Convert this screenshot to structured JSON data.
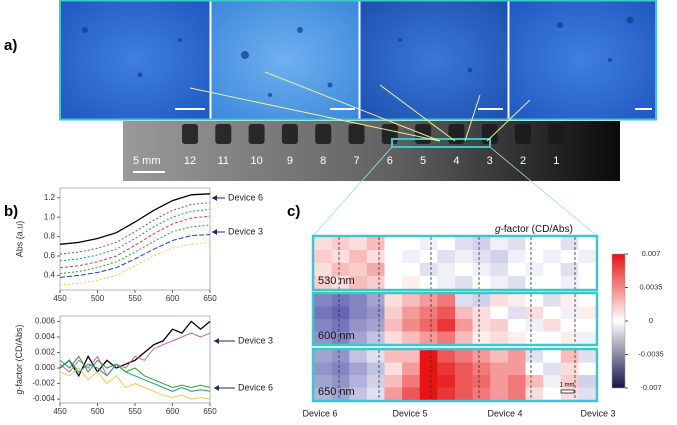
{
  "panel_labels": [
    "a)",
    "b)",
    "c)"
  ],
  "panel_a": {
    "scale_bar": "5 mm",
    "devices": [
      "12",
      "11",
      "10",
      "9",
      "8",
      "7",
      "6",
      "5",
      "4",
      "3",
      "2",
      "1"
    ]
  },
  "panel_b": {
    "abs_plot": {
      "type": "line",
      "ylabel": "Abs (a.u)",
      "x": [
        450,
        475,
        500,
        525,
        550,
        575,
        600,
        625,
        650
      ],
      "xlim": [
        450,
        650
      ],
      "xticks": [
        450,
        500,
        550,
        600,
        650
      ],
      "ylim": [
        0.25,
        1.3
      ],
      "yticks": [
        0.4,
        0.6,
        0.8,
        {
          "value": 1,
          "label": "1.0"
        },
        1.2
      ],
      "annotations": [
        "Device 6",
        "Device 3"
      ],
      "series": [
        {
          "color": "#000000",
          "dash": "",
          "values": [
            0.72,
            0.74,
            0.78,
            0.84,
            0.95,
            1.07,
            1.17,
            1.23,
            1.24
          ]
        },
        {
          "color": "#7a4fb0",
          "dash": "2,2",
          "values": [
            0.62,
            0.64,
            0.68,
            0.74,
            0.85,
            0.97,
            1.07,
            1.13,
            1.15
          ]
        },
        {
          "color": "#1a9a9a",
          "dash": "2,2",
          "values": [
            0.55,
            0.57,
            0.61,
            0.67,
            0.78,
            0.9,
            1.0,
            1.06,
            1.08
          ]
        },
        {
          "color": "#d04040",
          "dash": "3,2",
          "values": [
            0.48,
            0.5,
            0.54,
            0.6,
            0.71,
            0.83,
            0.93,
            0.99,
            1.01
          ]
        },
        {
          "color": "#3a9a3a",
          "dash": "2,2",
          "values": [
            0.42,
            0.44,
            0.48,
            0.54,
            0.64,
            0.75,
            0.85,
            0.9,
            0.92
          ]
        },
        {
          "color": "#2040c0",
          "dash": "5,2",
          "values": [
            0.38,
            0.4,
            0.43,
            0.48,
            0.57,
            0.67,
            0.76,
            0.81,
            0.82
          ]
        },
        {
          "color": "#e0d060",
          "dash": "2,2",
          "values": [
            0.3,
            0.32,
            0.35,
            0.4,
            0.5,
            0.6,
            0.68,
            0.72,
            0.74
          ]
        }
      ]
    },
    "g_plot": {
      "type": "line",
      "ylabel": [
        "g",
        "-factor (CD/Abs)"
      ],
      "x": [
        450,
        462.5,
        475,
        487.5,
        500,
        512.5,
        525,
        537.5,
        550,
        562.5,
        575,
        587.5,
        600,
        612.5,
        625,
        637.5,
        650
      ],
      "xlim": [
        450,
        650
      ],
      "xticks": [
        450,
        500,
        550,
        600,
        650
      ],
      "ylim": [
        -0.0045,
        0.0067
      ],
      "yticks": [
        -0.004,
        -0.002,
        {
          "value": 0,
          "label": "0.000"
        },
        0.002,
        0.004,
        0.006
      ],
      "annotations": [
        "Device 3",
        "Device 6"
      ],
      "series": [
        {
          "color": "#000000",
          "values": [
            0,
            0.001,
            -0.001,
            0.0015,
            -0.0005,
            0.001,
            0,
            0.0005,
            0.001,
            0.002,
            0.003,
            0.0035,
            0.005,
            0.0045,
            0.006,
            0.005,
            0.006
          ]
        },
        {
          "color": "#d060a0",
          "values": [
            0.0005,
            -0.0005,
            0.001,
            0,
            0.0015,
            -0.001,
            0.0005,
            0,
            0.0015,
            0.001,
            0.0025,
            0.003,
            0.0035,
            0.004,
            0.0045,
            0.004,
            0.0045
          ]
        },
        {
          "color": "#1a9a9a",
          "values": [
            0,
            0.001,
            -0.0005,
            0.0005,
            0,
            -0.001,
            0.0005,
            -0.0005,
            -0.001,
            -0.0015,
            -0.002,
            -0.0025,
            -0.003,
            -0.0025,
            -0.003,
            -0.0028,
            -0.003
          ]
        },
        {
          "color": "#3a9a3a",
          "values": [
            0.001,
            0,
            0.0015,
            -0.0005,
            0.001,
            0,
            0.0005,
            -0.0005,
            0,
            -0.001,
            -0.0015,
            -0.002,
            -0.0025,
            -0.0022,
            -0.0025,
            -0.0022,
            -0.0025
          ]
        },
        {
          "color": "#e0d060",
          "values": [
            -0.0005,
            -0.001,
            0,
            -0.0015,
            -0.0005,
            -0.002,
            -0.001,
            -0.0025,
            -0.002,
            -0.0025,
            -0.003,
            -0.0035,
            -0.0038,
            -0.0035,
            -0.004,
            -0.0038,
            -0.004
          ]
        }
      ]
    }
  },
  "panel_c": {
    "type": "heatmap",
    "title": [
      "g",
      "-factor (CD/Abs)"
    ],
    "clim": [
      -0.007,
      0.007
    ],
    "cticks": [
      0.007,
      0.0035,
      0,
      -0.0035,
      -0.007
    ],
    "devices": [
      "Device 6",
      "Device 5",
      "Device 4",
      "Device 3"
    ],
    "scale_bar": "1 mm",
    "maps": [
      {
        "label": "530 nm",
        "values": [
          [
            0.001,
            0.0015,
            0.001,
            0.002,
            0,
            0,
            -0.0005,
            0,
            -0.001,
            -0.0015,
            -0.0005,
            -0.001,
            0,
            0,
            -0.001,
            0
          ],
          [
            0.0015,
            0.001,
            0.002,
            0.001,
            0,
            -0.0005,
            0,
            -0.001,
            -0.0005,
            -0.001,
            -0.0015,
            -0.0005,
            0,
            -0.0005,
            0,
            -0.0005
          ],
          [
            0.001,
            0.002,
            0.0015,
            0.0025,
            0,
            0,
            -0.001,
            -0.0005,
            0,
            -0.0005,
            -0.001,
            0,
            -0.0005,
            0,
            -0.001,
            0
          ],
          [
            0.0015,
            0.001,
            0.002,
            0.0015,
            0,
            0.0005,
            0,
            -0.0005,
            -0.001,
            0,
            -0.0005,
            -0.001,
            0,
            0,
            -0.0005,
            0
          ]
        ]
      },
      {
        "label": "600 nm",
        "values": [
          [
            -0.004,
            -0.0045,
            -0.004,
            -0.003,
            0.001,
            0.002,
            0.003,
            0.004,
            -0.001,
            -0.0015,
            0.001,
            0.0005,
            0,
            -0.001,
            0.0005,
            0
          ],
          [
            -0.0045,
            -0.005,
            -0.004,
            -0.0035,
            0.0015,
            0.003,
            0.004,
            0.005,
            0.002,
            0.001,
            0,
            -0.001,
            0.001,
            0,
            -0.0005,
            0.0005
          ],
          [
            -0.004,
            -0.0045,
            -0.0035,
            -0.003,
            0.002,
            0.0035,
            0.0045,
            0.006,
            0.003,
            0.001,
            0.0015,
            0,
            -0.0005,
            0.001,
            0,
            0
          ],
          [
            -0.0035,
            -0.004,
            -0.003,
            -0.002,
            0.001,
            0.002,
            0.003,
            0.004,
            0.002,
            0.0005,
            0.001,
            0.0005,
            0,
            0,
            0.0005,
            -0.0005
          ]
        ]
      },
      {
        "label": "650 nm",
        "values": [
          [
            -0.003,
            -0.0035,
            -0.002,
            -0.001,
            0.002,
            0.002,
            0.007,
            0.005,
            0.004,
            0.003,
            0.002,
            0.003,
            -0.001,
            0,
            0.002,
            -0.001
          ],
          [
            -0.0035,
            -0.004,
            -0.003,
            -0.002,
            0.001,
            0.003,
            0.007,
            0.006,
            0.005,
            0.004,
            0.003,
            0.003,
            0,
            -0.001,
            0.001,
            0
          ],
          [
            -0.003,
            -0.0035,
            -0.0025,
            -0.0015,
            0.002,
            0.004,
            0.007,
            0.0065,
            0.005,
            0.0045,
            0.003,
            0.004,
            0.002,
            -0.0005,
            0.0015,
            -0.0015
          ],
          [
            -0.0025,
            -0.003,
            -0.002,
            -0.001,
            0.003,
            0.005,
            0.007,
            0.006,
            0.005,
            0.004,
            0.003,
            0.004,
            0.001,
            0,
            0.001,
            -0.001
          ]
        ]
      }
    ]
  }
}
